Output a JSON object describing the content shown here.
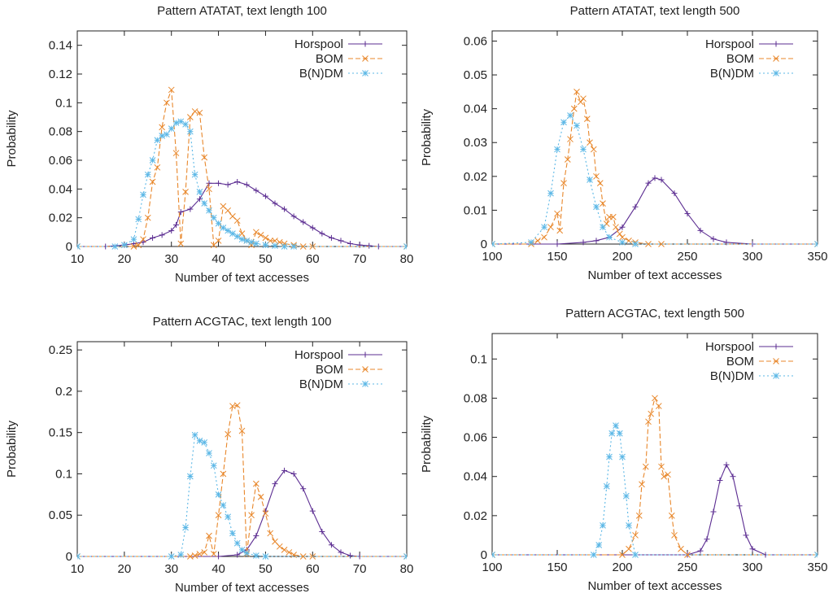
{
  "colors": {
    "horspool": "#5b2c91",
    "bom": "#e8872b",
    "bndm": "#5bb7e6",
    "axis": "#222222"
  },
  "chart_data": [
    {
      "type": "line",
      "title": "Pattern ATATAT, text length 100",
      "xlabel": "Number of text accesses",
      "ylabel": "Probability",
      "xlim": [
        10,
        80
      ],
      "ylim": [
        0,
        0.15
      ],
      "xticks": [
        10,
        20,
        30,
        40,
        50,
        60,
        70,
        80
      ],
      "xtick_labels": [
        "10",
        "20",
        "30",
        "40",
        "50",
        "60",
        "70",
        "80"
      ],
      "yticks": [
        0,
        0.02,
        0.04,
        0.06,
        0.08,
        0.1,
        0.12,
        0.14
      ],
      "ytick_labels": [
        "0",
        "0.02",
        "0.04",
        "0.06",
        "0.08",
        "0.1",
        "0.12",
        "0.14"
      ],
      "legend": "top-right",
      "series": [
        {
          "name": "Horspool",
          "style": "solid",
          "marker": "+",
          "x": [
            10,
            16,
            20,
            22,
            24,
            26,
            28,
            30,
            31,
            32,
            34,
            36,
            38,
            40,
            42,
            44,
            46,
            48,
            50,
            52,
            54,
            56,
            58,
            60,
            62,
            64,
            66,
            68,
            70,
            72,
            74,
            80
          ],
          "y": [
            0,
            0,
            0.001,
            0.002,
            0.003,
            0.006,
            0.008,
            0.011,
            0.015,
            0.024,
            0.026,
            0.033,
            0.044,
            0.044,
            0.043,
            0.045,
            0.043,
            0.039,
            0.035,
            0.03,
            0.026,
            0.021,
            0.017,
            0.013,
            0.009,
            0.006,
            0.004,
            0.002,
            0.001,
            0.0005,
            0,
            0
          ]
        },
        {
          "name": "BOM",
          "style": "dashed",
          "marker": "x",
          "x": [
            10,
            22,
            23,
            24,
            25,
            26,
            27,
            28,
            29,
            30,
            31,
            32,
            33,
            34,
            35,
            36,
            37,
            38,
            39,
            40,
            41,
            42,
            43,
            44,
            45,
            46,
            47,
            48,
            49,
            50,
            51,
            52,
            53,
            54,
            56,
            58,
            60,
            80
          ],
          "y": [
            0,
            0,
            0.001,
            0.005,
            0.02,
            0.045,
            0.055,
            0.083,
            0.1,
            0.109,
            0.065,
            0.002,
            0.038,
            0.09,
            0.094,
            0.093,
            0.062,
            0.04,
            0.001,
            0.004,
            0.028,
            0.025,
            0.021,
            0.018,
            0.009,
            0.004,
            0.001,
            0.01,
            0.008,
            0.006,
            0.004,
            0.004,
            0.003,
            0.002,
            0.001,
            0,
            0,
            0
          ]
        },
        {
          "name": "B(N)DM",
          "style": "dotted",
          "marker": "*",
          "x": [
            10,
            18,
            20,
            22,
            23,
            24,
            25,
            26,
            27,
            28,
            29,
            30,
            31,
            32,
            33,
            34,
            35,
            36,
            37,
            38,
            39,
            40,
            41,
            42,
            43,
            44,
            45,
            46,
            47,
            48,
            50,
            52,
            54,
            56,
            80
          ],
          "y": [
            0,
            0,
            0.001,
            0.005,
            0.019,
            0.036,
            0.05,
            0.06,
            0.074,
            0.077,
            0.078,
            0.082,
            0.086,
            0.087,
            0.085,
            0.08,
            0.05,
            0.038,
            0.03,
            0.025,
            0.02,
            0.016,
            0.013,
            0.011,
            0.009,
            0.007,
            0.005,
            0.004,
            0.003,
            0.002,
            0.001,
            0.0005,
            0,
            0,
            0
          ]
        }
      ]
    },
    {
      "type": "line",
      "title": "Pattern ATATAT, text length 500",
      "xlabel": "Number of text accesses",
      "ylabel": "Probability",
      "xlim": [
        100,
        350
      ],
      "ylim": [
        0,
        0.063
      ],
      "xticks": [
        100,
        150,
        200,
        250,
        300,
        350
      ],
      "xtick_labels": [
        "100",
        "150",
        "200",
        "250",
        "300",
        "350"
      ],
      "yticks": [
        0,
        0.01,
        0.02,
        0.03,
        0.04,
        0.05,
        0.06
      ],
      "ytick_labels": [
        "0",
        "0.01",
        "0.02",
        "0.03",
        "0.04",
        "0.05",
        "0.06"
      ],
      "legend": "top-right",
      "series": [
        {
          "name": "Horspool",
          "style": "solid",
          "marker": "+",
          "x": [
            100,
            150,
            170,
            180,
            190,
            200,
            210,
            220,
            225,
            230,
            240,
            250,
            260,
            270,
            280,
            300,
            350
          ],
          "y": [
            0,
            0,
            0.0005,
            0.001,
            0.002,
            0.005,
            0.011,
            0.018,
            0.0195,
            0.019,
            0.015,
            0.009,
            0.004,
            0.0015,
            0.0005,
            0,
            0
          ]
        },
        {
          "name": "BOM",
          "style": "dashed",
          "marker": "x",
          "x": [
            100,
            130,
            135,
            140,
            145,
            150,
            152,
            155,
            158,
            160,
            163,
            165,
            168,
            170,
            173,
            175,
            178,
            180,
            183,
            185,
            188,
            190,
            193,
            195,
            198,
            200,
            205,
            210,
            220,
            230,
            350
          ],
          "y": [
            0,
            0,
            0.001,
            0.002,
            0.005,
            0.009,
            0.004,
            0.018,
            0.025,
            0.031,
            0.04,
            0.045,
            0.042,
            0.043,
            0.037,
            0.03,
            0.028,
            0.02,
            0.018,
            0.012,
            0.006,
            0.008,
            0.008,
            0.005,
            0.003,
            0.002,
            0.001,
            0.0005,
            0,
            0,
            0
          ]
        },
        {
          "name": "B(N)DM",
          "style": "dotted",
          "marker": "*",
          "x": [
            100,
            130,
            140,
            145,
            150,
            155,
            160,
            165,
            170,
            175,
            180,
            185,
            190,
            200,
            210,
            350
          ],
          "y": [
            0,
            0.0005,
            0.005,
            0.015,
            0.028,
            0.036,
            0.038,
            0.035,
            0.028,
            0.019,
            0.011,
            0.005,
            0.002,
            0.0005,
            0,
            0
          ]
        }
      ]
    },
    {
      "type": "line",
      "title": "Pattern ACGTAC, text length 100",
      "xlabel": "Number of text accesses",
      "ylabel": "Probability",
      "xlim": [
        10,
        80
      ],
      "ylim": [
        0,
        0.26
      ],
      "xticks": [
        10,
        20,
        30,
        40,
        50,
        60,
        70,
        80
      ],
      "xtick_labels": [
        "10",
        "20",
        "30",
        "40",
        "50",
        "60",
        "70",
        "80"
      ],
      "yticks": [
        0,
        0.05,
        0.1,
        0.15,
        0.2,
        0.25
      ],
      "ytick_labels": [
        "0",
        "0.05",
        "0.1",
        "0.15",
        "0.2",
        "0.25"
      ],
      "legend": "top-right",
      "series": [
        {
          "name": "Horspool",
          "style": "solid",
          "marker": "+",
          "x": [
            10,
            40,
            44,
            46,
            48,
            50,
            52,
            54,
            56,
            58,
            60,
            62,
            64,
            66,
            68,
            70,
            80
          ],
          "y": [
            0,
            0,
            0.002,
            0.008,
            0.025,
            0.055,
            0.088,
            0.104,
            0.1,
            0.082,
            0.055,
            0.03,
            0.014,
            0.005,
            0.001,
            0,
            0
          ]
        },
        {
          "name": "BOM",
          "style": "dashed",
          "marker": "x",
          "x": [
            10,
            34,
            35,
            36,
            37,
            38,
            39,
            40,
            41,
            42,
            43,
            44,
            45,
            46,
            47,
            48,
            49,
            50,
            51,
            52,
            53,
            54,
            55,
            56,
            58,
            60,
            80
          ],
          "y": [
            0,
            0,
            0.001,
            0.003,
            0.005,
            0.025,
            0.003,
            0.05,
            0.1,
            0.148,
            0.182,
            0.183,
            0.152,
            0.003,
            0.05,
            0.088,
            0.072,
            0.052,
            0.028,
            0.018,
            0.012,
            0.008,
            0.005,
            0.002,
            0,
            0,
            0
          ]
        },
        {
          "name": "B(N)DM",
          "style": "dotted",
          "marker": "*",
          "x": [
            10,
            30,
            32,
            33,
            34,
            35,
            36,
            37,
            38,
            39,
            40,
            41,
            42,
            43,
            44,
            45,
            46,
            48,
            50,
            80
          ],
          "y": [
            0,
            0,
            0.002,
            0.035,
            0.097,
            0.147,
            0.14,
            0.138,
            0.125,
            0.11,
            0.075,
            0.062,
            0.048,
            0.028,
            0.016,
            0.008,
            0.004,
            0.001,
            0,
            0
          ]
        }
      ]
    },
    {
      "type": "line",
      "title": "Pattern ACGTAC, text length 500",
      "xlabel": "Number of text accesses",
      "ylabel": "Probability",
      "xlim": [
        100,
        350
      ],
      "ylim": [
        0,
        0.113
      ],
      "xticks": [
        100,
        150,
        200,
        250,
        300,
        350
      ],
      "xtick_labels": [
        "100",
        "150",
        "200",
        "250",
        "300",
        "350"
      ],
      "yticks": [
        0,
        0.02,
        0.04,
        0.06,
        0.08,
        0.1
      ],
      "ytick_labels": [
        "0",
        "0.02",
        "0.04",
        "0.06",
        "0.08",
        "0.1"
      ],
      "legend": "top-right",
      "series": [
        {
          "name": "Horspool",
          "style": "solid",
          "marker": "+",
          "x": [
            100,
            250,
            260,
            265,
            270,
            275,
            280,
            285,
            290,
            295,
            300,
            310,
            350
          ],
          "y": [
            0,
            0,
            0.002,
            0.008,
            0.022,
            0.038,
            0.046,
            0.04,
            0.025,
            0.01,
            0.003,
            0,
            0
          ]
        },
        {
          "name": "BOM",
          "style": "dashed",
          "marker": "x",
          "x": [
            100,
            200,
            205,
            210,
            213,
            215,
            218,
            220,
            222,
            225,
            228,
            230,
            232,
            235,
            238,
            240,
            245,
            250,
            350
          ],
          "y": [
            0,
            0,
            0.003,
            0.01,
            0.02,
            0.036,
            0.045,
            0.068,
            0.072,
            0.08,
            0.076,
            0.045,
            0.04,
            0.041,
            0.02,
            0.01,
            0.003,
            0,
            0
          ]
        },
        {
          "name": "B(N)DM",
          "style": "dotted",
          "marker": "*",
          "x": [
            100,
            178,
            182,
            185,
            188,
            190,
            192,
            195,
            198,
            200,
            203,
            205,
            210,
            350
          ],
          "y": [
            0,
            0,
            0.005,
            0.015,
            0.035,
            0.05,
            0.062,
            0.066,
            0.062,
            0.05,
            0.03,
            0.015,
            0,
            0
          ]
        }
      ]
    }
  ]
}
